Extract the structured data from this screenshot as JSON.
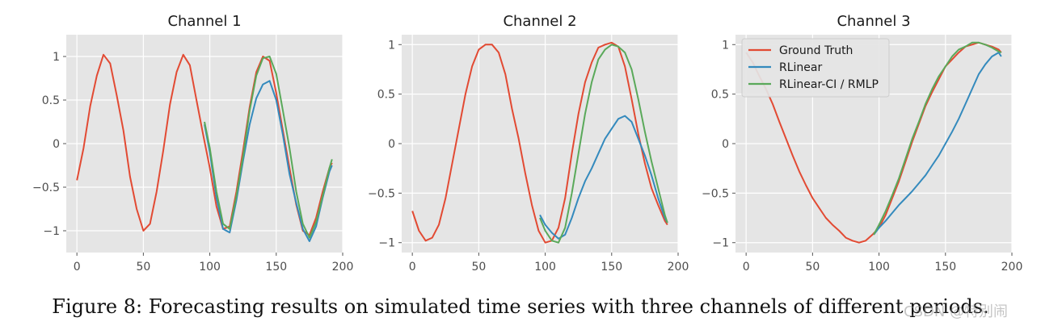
{
  "caption": "Figure 8: Forecasting results on simulated time series with three channels of different periods.",
  "watermark": "CSDN @特别闹",
  "colors": {
    "ground_truth": "#e24a33",
    "rlinear": "#348abd",
    "rlinear_ci_rmlp": "#5aa95a",
    "axes_bg": "#e5e5e5",
    "grid": "#ffffff"
  },
  "chart_data": [
    {
      "type": "line",
      "title": "Channel 1",
      "xlim": [
        -8,
        200
      ],
      "ylim": [
        -1.25,
        1.25
      ],
      "xticks": [
        0,
        50,
        100,
        150,
        200
      ],
      "yticks": [
        -1.0,
        -0.5,
        0.0,
        0.5,
        1.0
      ],
      "grid": true,
      "legend": "none",
      "series": [
        {
          "name": "Ground Truth",
          "color": "#e24a33",
          "x": [
            0,
            5,
            10,
            15,
            20,
            25,
            30,
            35,
            40,
            45,
            50,
            55,
            60,
            65,
            70,
            75,
            80,
            85,
            90,
            95,
            100,
            105,
            110,
            115,
            120,
            125,
            130,
            135,
            140,
            145,
            150,
            155,
            160,
            165,
            170,
            175,
            180,
            185,
            190,
            192
          ],
          "y": [
            -0.42,
            -0.05,
            0.43,
            0.78,
            1.02,
            0.92,
            0.55,
            0.15,
            -0.38,
            -0.75,
            -1.0,
            -0.92,
            -0.55,
            -0.08,
            0.45,
            0.82,
            1.02,
            0.9,
            0.5,
            0.1,
            -0.28,
            -0.72,
            -0.98,
            -0.95,
            -0.55,
            -0.08,
            0.42,
            0.82,
            1.0,
            0.95,
            0.58,
            0.15,
            -0.28,
            -0.7,
            -1.0,
            -1.05,
            -0.85,
            -0.55,
            -0.28,
            -0.22
          ]
        },
        {
          "name": "RLinear",
          "color": "#348abd",
          "x": [
            96,
            100,
            105,
            110,
            115,
            120,
            125,
            130,
            135,
            140,
            145,
            150,
            155,
            160,
            165,
            170,
            175,
            180,
            185,
            190,
            192
          ],
          "y": [
            0.22,
            -0.1,
            -0.62,
            -0.98,
            -1.02,
            -0.65,
            -0.2,
            0.22,
            0.52,
            0.68,
            0.72,
            0.5,
            0.1,
            -0.35,
            -0.68,
            -0.98,
            -1.12,
            -0.95,
            -0.62,
            -0.32,
            -0.25
          ]
        },
        {
          "name": "RLinear-CI / RMLP",
          "color": "#5aa95a",
          "x": [
            96,
            100,
            105,
            110,
            115,
            120,
            125,
            130,
            135,
            140,
            145,
            150,
            155,
            160,
            165,
            170,
            175,
            180,
            185,
            190,
            192
          ],
          "y": [
            0.25,
            -0.05,
            -0.55,
            -0.92,
            -0.98,
            -0.6,
            -0.15,
            0.38,
            0.78,
            0.98,
            1.0,
            0.8,
            0.38,
            -0.05,
            -0.55,
            -0.92,
            -1.08,
            -0.9,
            -0.6,
            -0.28,
            -0.18
          ]
        }
      ]
    },
    {
      "type": "line",
      "title": "Channel 2",
      "xlim": [
        -8,
        200
      ],
      "ylim": [
        -1.1,
        1.1
      ],
      "xticks": [
        0,
        50,
        100,
        150,
        200
      ],
      "yticks": [
        -1.0,
        -0.5,
        0.0,
        0.5,
        1.0
      ],
      "grid": true,
      "legend": "none",
      "series": [
        {
          "name": "Ground Truth",
          "color": "#e24a33",
          "x": [
            0,
            5,
            10,
            15,
            20,
            25,
            30,
            35,
            40,
            45,
            50,
            55,
            60,
            65,
            70,
            75,
            80,
            85,
            90,
            95,
            100,
            105,
            110,
            115,
            120,
            125,
            130,
            135,
            140,
            145,
            150,
            155,
            160,
            165,
            170,
            175,
            180,
            185,
            190,
            192
          ],
          "y": [
            -0.68,
            -0.88,
            -0.98,
            -0.95,
            -0.82,
            -0.55,
            -0.2,
            0.15,
            0.5,
            0.78,
            0.95,
            1.0,
            1.0,
            0.92,
            0.7,
            0.35,
            0.05,
            -0.3,
            -0.62,
            -0.88,
            -1.0,
            -0.98,
            -0.85,
            -0.55,
            -0.1,
            0.3,
            0.62,
            0.82,
            0.97,
            1.0,
            1.02,
            0.98,
            0.78,
            0.45,
            0.1,
            -0.2,
            -0.45,
            -0.62,
            -0.78,
            -0.82
          ]
        },
        {
          "name": "RLinear",
          "color": "#348abd",
          "x": [
            96,
            100,
            105,
            110,
            115,
            120,
            125,
            130,
            135,
            140,
            145,
            150,
            155,
            160,
            165,
            170,
            175,
            180,
            185,
            190,
            192
          ],
          "y": [
            -0.72,
            -0.82,
            -0.9,
            -0.96,
            -0.92,
            -0.75,
            -0.55,
            -0.38,
            -0.25,
            -0.1,
            0.05,
            0.15,
            0.25,
            0.28,
            0.22,
            0.05,
            -0.12,
            -0.32,
            -0.55,
            -0.75,
            -0.8
          ]
        },
        {
          "name": "RLinear-CI / RMLP",
          "color": "#5aa95a",
          "x": [
            96,
            100,
            105,
            110,
            115,
            120,
            125,
            130,
            135,
            140,
            145,
            150,
            155,
            160,
            165,
            170,
            175,
            180,
            185,
            190,
            192
          ],
          "y": [
            -0.75,
            -0.88,
            -0.98,
            -1.0,
            -0.85,
            -0.5,
            -0.1,
            0.3,
            0.62,
            0.85,
            0.95,
            1.0,
            0.98,
            0.92,
            0.75,
            0.45,
            0.12,
            -0.18,
            -0.45,
            -0.72,
            -0.8
          ]
        }
      ]
    },
    {
      "type": "line",
      "title": "Channel 3",
      "xlim": [
        -8,
        200
      ],
      "ylim": [
        -1.1,
        1.1
      ],
      "xticks": [
        0,
        50,
        100,
        150,
        200
      ],
      "yticks": [
        -1.0,
        -0.5,
        0.0,
        0.5,
        1.0
      ],
      "grid": true,
      "legend": "top-left",
      "series": [
        {
          "name": "Ground Truth",
          "color": "#e24a33",
          "x": [
            0,
            5,
            10,
            15,
            20,
            25,
            30,
            35,
            40,
            45,
            50,
            55,
            60,
            65,
            70,
            75,
            80,
            85,
            90,
            95,
            100,
            105,
            110,
            115,
            120,
            125,
            130,
            135,
            140,
            145,
            150,
            155,
            160,
            165,
            170,
            175,
            180,
            185,
            190,
            192
          ],
          "y": [
            0.92,
            0.82,
            0.68,
            0.55,
            0.4,
            0.22,
            0.05,
            -0.12,
            -0.28,
            -0.42,
            -0.55,
            -0.65,
            -0.75,
            -0.82,
            -0.88,
            -0.95,
            -0.98,
            -1.0,
            -0.98,
            -0.92,
            -0.85,
            -0.72,
            -0.55,
            -0.38,
            -0.18,
            0.02,
            0.2,
            0.38,
            0.52,
            0.65,
            0.78,
            0.85,
            0.92,
            0.98,
            1.0,
            1.02,
            1.0,
            0.98,
            0.95,
            0.92
          ]
        },
        {
          "name": "RLinear",
          "color": "#348abd",
          "x": [
            96,
            100,
            105,
            110,
            115,
            120,
            125,
            130,
            135,
            140,
            145,
            150,
            155,
            160,
            165,
            170,
            175,
            180,
            185,
            190,
            192
          ],
          "y": [
            -0.92,
            -0.85,
            -0.78,
            -0.7,
            -0.62,
            -0.55,
            -0.48,
            -0.4,
            -0.32,
            -0.22,
            -0.12,
            0.0,
            0.12,
            0.25,
            0.4,
            0.55,
            0.7,
            0.8,
            0.88,
            0.92,
            0.88
          ]
        },
        {
          "name": "RLinear-CI / RMLP",
          "color": "#5aa95a",
          "x": [
            96,
            100,
            105,
            110,
            115,
            120,
            125,
            130,
            135,
            140,
            145,
            150,
            155,
            160,
            165,
            170,
            175,
            180,
            185,
            190,
            192
          ],
          "y": [
            -0.92,
            -0.82,
            -0.68,
            -0.52,
            -0.35,
            -0.15,
            0.05,
            0.22,
            0.4,
            0.55,
            0.68,
            0.78,
            0.88,
            0.95,
            0.98,
            1.02,
            1.02,
            1.0,
            0.97,
            0.93,
            0.92
          ]
        }
      ]
    }
  ]
}
